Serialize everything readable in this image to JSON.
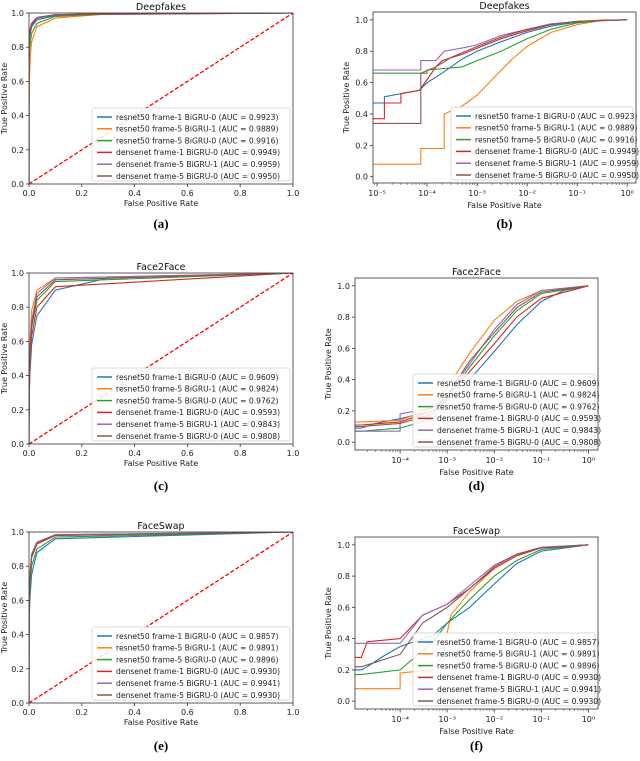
{
  "colors": [
    "#1f77b4",
    "#ff7f0e",
    "#2ca02c",
    "#d62728",
    "#9467bd",
    "#8c564b"
  ],
  "diagonal_color": "#ff0000",
  "series_names": [
    "resnet50 frame-1 BiGRU-0",
    "resnet50 frame-5 BiGRU-1",
    "resnet50 frame-5 BiGRU-0",
    "densenet frame-1 BiGRU-0",
    "densenet frame-5 BiGRU-1",
    "densenet frame-5 BiGRU-0"
  ],
  "datasets": {
    "Deepfakes": {
      "auc": [
        "0.9923",
        "0.9889",
        "0.9916",
        "0.9949",
        "0.9959",
        "0.9950"
      ],
      "points": [
        [
          [
            0,
            0
          ],
          [
            1e-05,
            0.47
          ],
          [
            1.4e-05,
            0.47
          ],
          [
            1.4e-05,
            0.51
          ],
          [
            7e-05,
            0.55
          ],
          [
            0.0001,
            0.6
          ],
          [
            0.0002,
            0.66
          ],
          [
            0.0005,
            0.75
          ],
          [
            0.001,
            0.8
          ],
          [
            0.003,
            0.86
          ],
          [
            0.01,
            0.92
          ],
          [
            0.03,
            0.96
          ],
          [
            0.1,
            0.985
          ],
          [
            0.3,
            0.997
          ],
          [
            1,
            1
          ]
        ],
        [
          [
            0,
            0
          ],
          [
            1e-05,
            0.08
          ],
          [
            7.5e-05,
            0.08
          ],
          [
            7.5e-05,
            0.18
          ],
          [
            0.00022,
            0.18
          ],
          [
            0.00022,
            0.4
          ],
          [
            0.0005,
            0.45
          ],
          [
            0.001,
            0.52
          ],
          [
            0.002,
            0.62
          ],
          [
            0.005,
            0.75
          ],
          [
            0.01,
            0.83
          ],
          [
            0.03,
            0.92
          ],
          [
            0.1,
            0.97
          ],
          [
            0.3,
            0.995
          ],
          [
            1,
            1
          ]
        ],
        [
          [
            0,
            0
          ],
          [
            1e-05,
            0.66
          ],
          [
            0.0001,
            0.66
          ],
          [
            0.0001,
            0.68
          ],
          [
            0.0005,
            0.7
          ],
          [
            0.001,
            0.74
          ],
          [
            0.003,
            0.8
          ],
          [
            0.01,
            0.88
          ],
          [
            0.03,
            0.94
          ],
          [
            0.1,
            0.98
          ],
          [
            0.3,
            0.995
          ],
          [
            1,
            1
          ]
        ],
        [
          [
            0,
            0
          ],
          [
            1e-05,
            0.37
          ],
          [
            1.4e-05,
            0.37
          ],
          [
            1.4e-05,
            0.47
          ],
          [
            3e-05,
            0.47
          ],
          [
            3e-05,
            0.53
          ],
          [
            7e-05,
            0.55
          ],
          [
            0.0001,
            0.62
          ],
          [
            0.00015,
            0.7
          ],
          [
            0.0002,
            0.74
          ],
          [
            0.0005,
            0.78
          ],
          [
            0.001,
            0.82
          ],
          [
            0.003,
            0.88
          ],
          [
            0.01,
            0.93
          ],
          [
            0.03,
            0.97
          ],
          [
            0.1,
            0.99
          ],
          [
            0.3,
            0.998
          ],
          [
            1,
            1
          ]
        ],
        [
          [
            0,
            0
          ],
          [
            1e-05,
            0.68
          ],
          [
            7.5e-05,
            0.68
          ],
          [
            7.5e-05,
            0.74
          ],
          [
            0.00015,
            0.74
          ],
          [
            0.00022,
            0.8
          ],
          [
            0.0005,
            0.82
          ],
          [
            0.001,
            0.84
          ],
          [
            0.003,
            0.9
          ],
          [
            0.01,
            0.94
          ],
          [
            0.03,
            0.975
          ],
          [
            0.1,
            0.99
          ],
          [
            1,
            1
          ]
        ],
        [
          [
            0,
            0
          ],
          [
            1e-05,
            0.34
          ],
          [
            7.5e-05,
            0.34
          ],
          [
            7.5e-05,
            0.66
          ],
          [
            0.00015,
            0.7
          ],
          [
            0.0003,
            0.76
          ],
          [
            0.001,
            0.83
          ],
          [
            0.003,
            0.89
          ],
          [
            0.01,
            0.94
          ],
          [
            0.03,
            0.97
          ],
          [
            0.1,
            0.99
          ],
          [
            1,
            1
          ]
        ]
      ]
    },
    "Face2Face": {
      "auc": [
        "0.9609",
        "0.9824",
        "0.9762",
        "0.9593",
        "0.9843",
        "0.9808"
      ],
      "points": [
        [
          [
            0,
            0
          ],
          [
            1.5e-05,
            0.09
          ],
          [
            3e-05,
            0.12
          ],
          [
            0.0001,
            0.15
          ],
          [
            0.0005,
            0.2
          ],
          [
            0.001,
            0.27
          ],
          [
            0.003,
            0.4
          ],
          [
            0.01,
            0.58
          ],
          [
            0.03,
            0.75
          ],
          [
            0.1,
            0.9
          ],
          [
            0.3,
            0.97
          ],
          [
            1,
            1
          ]
        ],
        [
          [
            0,
            0
          ],
          [
            1.5e-05,
            0.13
          ],
          [
            0.0001,
            0.14
          ],
          [
            0.0005,
            0.22
          ],
          [
            0.001,
            0.35
          ],
          [
            0.003,
            0.57
          ],
          [
            0.01,
            0.78
          ],
          [
            0.03,
            0.9
          ],
          [
            0.1,
            0.97
          ],
          [
            1,
            1
          ]
        ],
        [
          [
            0,
            0
          ],
          [
            1.5e-05,
            0.07
          ],
          [
            0.0001,
            0.09
          ],
          [
            0.0005,
            0.15
          ],
          [
            0.001,
            0.28
          ],
          [
            0.003,
            0.48
          ],
          [
            0.01,
            0.68
          ],
          [
            0.03,
            0.84
          ],
          [
            0.1,
            0.95
          ],
          [
            1,
            1
          ]
        ],
        [
          [
            0,
            0
          ],
          [
            1.5e-05,
            0.11
          ],
          [
            0.0001,
            0.13
          ],
          [
            0.0005,
            0.2
          ],
          [
            0.001,
            0.3
          ],
          [
            0.003,
            0.45
          ],
          [
            0.01,
            0.63
          ],
          [
            0.03,
            0.8
          ],
          [
            0.1,
            0.92
          ],
          [
            1,
            1
          ]
        ],
        [
          [
            0,
            0
          ],
          [
            1.5e-05,
            0.07
          ],
          [
            0.0001,
            0.07
          ],
          [
            0.0001,
            0.18
          ],
          [
            0.0005,
            0.22
          ],
          [
            0.001,
            0.3
          ],
          [
            0.003,
            0.5
          ],
          [
            0.01,
            0.72
          ],
          [
            0.03,
            0.88
          ],
          [
            0.1,
            0.97
          ],
          [
            1,
            1
          ]
        ],
        [
          [
            0,
            0
          ],
          [
            1.5e-05,
            0.1
          ],
          [
            0.0001,
            0.12
          ],
          [
            0.0005,
            0.18
          ],
          [
            0.001,
            0.3
          ],
          [
            0.003,
            0.52
          ],
          [
            0.01,
            0.7
          ],
          [
            0.03,
            0.86
          ],
          [
            0.1,
            0.96
          ],
          [
            1,
            1
          ]
        ]
      ]
    },
    "FaceSwap": {
      "auc": [
        "0.9857",
        "0.9891",
        "0.9896",
        "0.9930",
        "0.9941",
        "0.9930"
      ],
      "points": [
        [
          [
            0,
            0
          ],
          [
            1.5e-05,
            0.2
          ],
          [
            2e-05,
            0.22
          ],
          [
            4e-05,
            0.28
          ],
          [
            0.0001,
            0.35
          ],
          [
            0.0005,
            0.42
          ],
          [
            0.001,
            0.5
          ],
          [
            0.003,
            0.6
          ],
          [
            0.01,
            0.75
          ],
          [
            0.03,
            0.88
          ],
          [
            0.1,
            0.96
          ],
          [
            1,
            1
          ]
        ],
        [
          [
            0,
            0
          ],
          [
            1.5e-05,
            0.08
          ],
          [
            0.0001,
            0.08
          ],
          [
            0.0001,
            0.18
          ],
          [
            0.0005,
            0.2
          ],
          [
            0.0008,
            0.3
          ],
          [
            0.0012,
            0.55
          ],
          [
            0.003,
            0.7
          ],
          [
            0.01,
            0.85
          ],
          [
            0.03,
            0.93
          ],
          [
            0.1,
            0.98
          ],
          [
            1,
            1
          ]
        ],
        [
          [
            0,
            0
          ],
          [
            1.5e-05,
            0.17
          ],
          [
            0.0001,
            0.2
          ],
          [
            0.0005,
            0.38
          ],
          [
            0.001,
            0.5
          ],
          [
            0.003,
            0.65
          ],
          [
            0.01,
            0.8
          ],
          [
            0.03,
            0.9
          ],
          [
            0.1,
            0.97
          ],
          [
            1,
            1
          ]
        ],
        [
          [
            0,
            0
          ],
          [
            1.5e-05,
            0.28
          ],
          [
            2e-05,
            0.38
          ],
          [
            0.0001,
            0.4
          ],
          [
            0.0003,
            0.55
          ],
          [
            0.001,
            0.62
          ],
          [
            0.003,
            0.72
          ],
          [
            0.01,
            0.85
          ],
          [
            0.03,
            0.93
          ],
          [
            0.1,
            0.98
          ],
          [
            1,
            1
          ]
        ],
        [
          [
            0,
            0
          ],
          [
            1.5e-05,
            0.37
          ],
          [
            0.0001,
            0.37
          ],
          [
            0.0003,
            0.55
          ],
          [
            0.001,
            0.62
          ],
          [
            0.003,
            0.74
          ],
          [
            0.01,
            0.87
          ],
          [
            0.03,
            0.94
          ],
          [
            0.1,
            0.985
          ],
          [
            1,
            1
          ]
        ],
        [
          [
            0,
            0
          ],
          [
            1.5e-05,
            0.22
          ],
          [
            0.0001,
            0.3
          ],
          [
            0.0003,
            0.5
          ],
          [
            0.001,
            0.6
          ],
          [
            0.003,
            0.72
          ],
          [
            0.01,
            0.86
          ],
          [
            0.03,
            0.94
          ],
          [
            0.1,
            0.98
          ],
          [
            1,
            1
          ]
        ]
      ]
    }
  },
  "chart_data": [
    {
      "type": "line",
      "panel": "(a)",
      "title": "Deepfakes",
      "dataset": "Deepfakes",
      "xscale": "linear",
      "xlim": [
        0,
        1
      ],
      "ylim": [
        0,
        1
      ],
      "xlabel": "False Positive Rate",
      "ylabel": "True Positive Rate",
      "x_tick_labels": [
        "0.0",
        "0.2",
        "0.4",
        "0.6",
        "0.8",
        "1.0"
      ],
      "y_tick_labels": [
        "0.0",
        "0.2",
        "0.4",
        "0.6",
        "0.8",
        "1.0"
      ],
      "diagonal": true,
      "legend": "lower-right"
    },
    {
      "type": "line",
      "panel": "(b)",
      "title": "Deepfakes",
      "dataset": "Deepfakes",
      "xscale": "log",
      "xlim": [
        8.3e-06,
        1.5
      ],
      "ylim": [
        -0.04,
        1.05
      ],
      "xlabel": "False Positive Rate",
      "ylabel": "True Positive Rate",
      "x_tick_labels": [
        "10⁻⁵",
        "10⁻⁴",
        "10⁻³",
        "10⁻²",
        "10⁻¹",
        "10⁰"
      ],
      "y_tick_labels": [
        "0.0",
        "0.2",
        "0.4",
        "0.6",
        "0.8",
        "1.0"
      ],
      "diagonal": false,
      "legend": "lower-right"
    },
    {
      "type": "line",
      "panel": "(c)",
      "title": "Face2Face",
      "dataset": "Face2Face",
      "xscale": "linear",
      "xlim": [
        0,
        1
      ],
      "ylim": [
        0,
        1
      ],
      "xlabel": "False Positive Rate",
      "ylabel": "True Positive Rate",
      "x_tick_labels": [
        "0.0",
        "0.2",
        "0.4",
        "0.6",
        "0.8",
        "1.0"
      ],
      "y_tick_labels": [
        "0.0",
        "0.2",
        "0.4",
        "0.6",
        "0.8",
        "1.0"
      ],
      "diagonal": true,
      "legend": "lower-right"
    },
    {
      "type": "line",
      "panel": "(d)",
      "title": "Face2Face",
      "dataset": "Face2Face",
      "xscale": "log",
      "xlim": [
        1.1e-05,
        1.6
      ],
      "ylim": [
        -0.05,
        1.05
      ],
      "xlabel": "False Positive Rate",
      "ylabel": "True Positive Rate",
      "x_tick_labels": [
        "10⁻⁴",
        "10⁻³",
        "10⁻²",
        "10⁻¹",
        "10⁰"
      ],
      "y_tick_labels": [
        "0.0",
        "0.2",
        "0.4",
        "0.6",
        "0.8",
        "1.0"
      ],
      "diagonal": false,
      "legend": "lower-right"
    },
    {
      "type": "line",
      "panel": "(e)",
      "title": "FaceSwap",
      "dataset": "FaceSwap",
      "xscale": "linear",
      "xlim": [
        0,
        1
      ],
      "ylim": [
        0,
        1
      ],
      "xlabel": "False Positive Rate",
      "ylabel": "True Positive Rate",
      "x_tick_labels": [
        "0.0",
        "0.2",
        "0.4",
        "0.6",
        "0.8",
        "1.0"
      ],
      "y_tick_labels": [
        "0.0",
        "0.2",
        "0.4",
        "0.6",
        "0.8",
        "1.0"
      ],
      "diagonal": true,
      "legend": "lower-right"
    },
    {
      "type": "line",
      "panel": "(f)",
      "title": "FaceSwap",
      "dataset": "FaceSwap",
      "xscale": "log",
      "xlim": [
        1.1e-05,
        1.6
      ],
      "ylim": [
        -0.05,
        1.05
      ],
      "xlabel": "False Positive Rate",
      "ylabel": "True Positive Rate",
      "x_tick_labels": [
        "10⁻⁴",
        "10⁻³",
        "10⁻²",
        "10⁻¹",
        "10⁰"
      ],
      "y_tick_labels": [
        "0.0",
        "0.2",
        "0.4",
        "0.6",
        "0.8",
        "1.0"
      ],
      "diagonal": false,
      "legend": "lower-right"
    }
  ]
}
